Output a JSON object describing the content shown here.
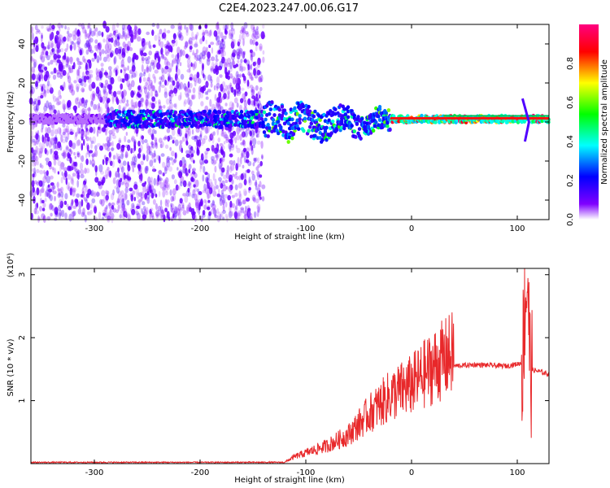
{
  "title": "C2E4.2023.247.00.06.G17",
  "colors": {
    "snr_line": "#e8282a",
    "background": "#ffffff",
    "axis": "#000000"
  },
  "chart_data": [
    {
      "type": "heatmap",
      "name": "spectrogram",
      "xlabel": "Height of straight line (km)",
      "ylabel": "Frequency (Hz)",
      "xlim": [
        -360,
        130
      ],
      "ylim": [
        -50,
        50
      ],
      "xticks": [
        "-300",
        "-200",
        "-100",
        "0",
        "100"
      ],
      "yticks": [
        "-40",
        "-20",
        "0",
        "20",
        "40"
      ],
      "colorbar": {
        "label": "Normalized spectral amplitude",
        "range": [
          0.0,
          1.0
        ],
        "ticks": [
          "0.0",
          "0.2",
          "0.4",
          "0.6",
          "0.8"
        ],
        "colormap": [
          "#ffffff",
          "#8000ff",
          "#0000ff",
          "#00ffff",
          "#00ff00",
          "#ffff00",
          "#ff0000",
          "#ff0080"
        ]
      },
      "features": {
        "scattered_noise_x_range": [
          -360,
          -140
        ],
        "main_band_center_hz": 1.5,
        "main_band_x_range": [
          -360,
          130
        ],
        "strong_band_x_range": [
          -20,
          130
        ],
        "spike_x": 108
      }
    },
    {
      "type": "line",
      "name": "snr",
      "xlabel": "Height of straight line (km)",
      "ylabel": "SNR (10 * v/v)",
      "yscale_label": "(x10⁴)",
      "xlim": [
        -360,
        130
      ],
      "ylim": [
        0,
        3.1
      ],
      "xticks": [
        "-300",
        "-200",
        "-100",
        "0",
        "100"
      ],
      "yticks": [
        "1",
        "2",
        "3"
      ],
      "envelope": [
        {
          "x": -360,
          "y": 0.02
        },
        {
          "x": -120,
          "y": 0.02
        },
        {
          "x": -110,
          "y": 0.1
        },
        {
          "x": -80,
          "y": 0.25
        },
        {
          "x": -60,
          "y": 0.4
        },
        {
          "x": -40,
          "y": 0.7
        },
        {
          "x": -20,
          "y": 0.95
        },
        {
          "x": 0,
          "y": 1.1
        },
        {
          "x": 20,
          "y": 1.35
        },
        {
          "x": 40,
          "y": 1.55
        },
        {
          "x": 60,
          "y": 1.57
        },
        {
          "x": 90,
          "y": 1.55
        },
        {
          "x": 105,
          "y": 1.6
        },
        {
          "x": 107,
          "y": 2.5
        },
        {
          "x": 110,
          "y": 3.0
        },
        {
          "x": 112,
          "y": 1.5
        },
        {
          "x": 130,
          "y": 1.42
        }
      ]
    }
  ]
}
